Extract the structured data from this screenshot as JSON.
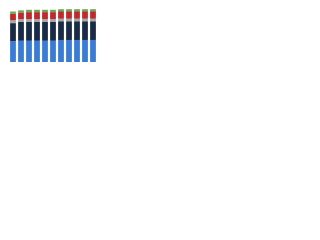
{
  "chart_data": {
    "type": "stacked_bar",
    "categories": [
      null,
      null,
      null,
      null,
      null,
      null,
      null,
      null,
      null,
      null,
      null
    ],
    "series": [
      {
        "color": "#3a7bd5",
        "values": [
          36,
          37,
          37,
          37,
          37,
          37,
          38,
          38,
          38,
          38,
          38
        ]
      },
      {
        "color": "#1a2b45",
        "values": [
          31,
          32,
          32,
          32,
          32,
          32,
          32,
          32,
          32,
          32,
          32
        ]
      },
      {
        "color": "#a6a6a6",
        "values": [
          5,
          5,
          5,
          5,
          5,
          5,
          5,
          5,
          5,
          5,
          5
        ]
      },
      {
        "color": "#c0282d",
        "values": [
          11,
          11,
          12,
          12,
          12,
          12,
          12,
          12,
          12,
          12,
          12
        ]
      },
      {
        "color": "#6aa84f",
        "values": [
          4,
          4,
          4,
          4,
          4,
          4,
          4,
          4,
          4,
          4,
          4
        ]
      }
    ],
    "ylim": [
      0,
      100
    ]
  }
}
